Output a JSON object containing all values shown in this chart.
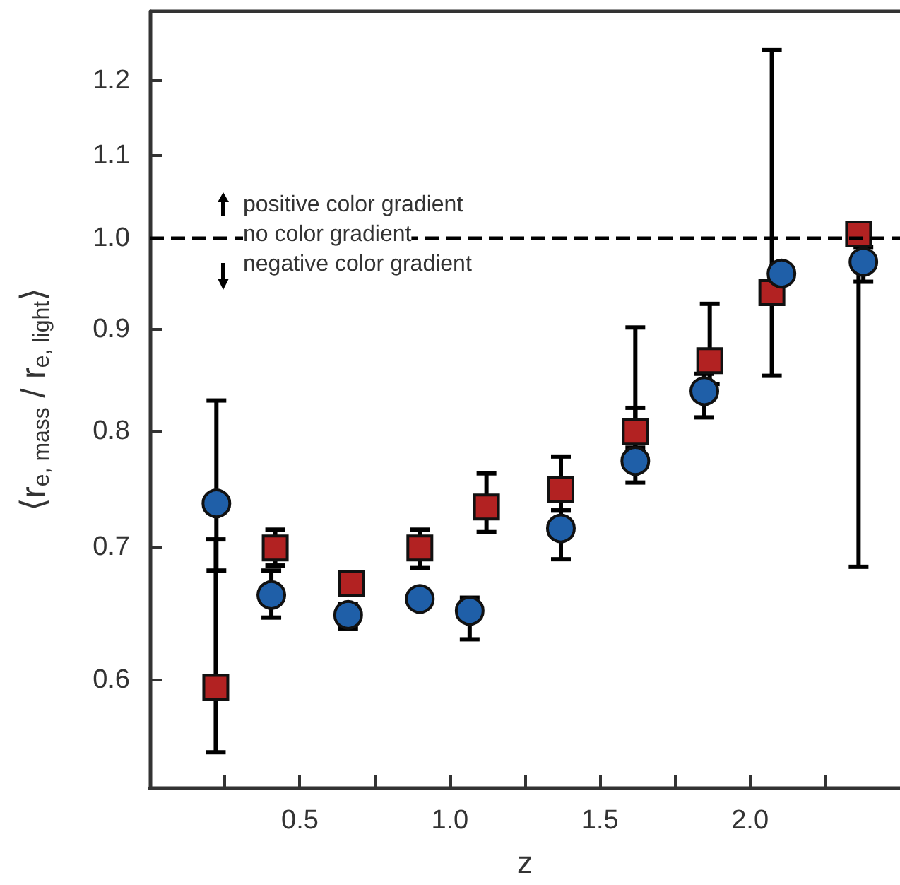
{
  "chart_data": {
    "type": "scatter",
    "xlabel": "z",
    "ylabel": "⟨r$_{e, mass}$ / r$_{e, light}$⟩",
    "log": "y",
    "xlim": [
      0,
      2.5
    ],
    "ylim": [
      0.53,
      1.3
    ],
    "xticks": [
      {
        "value": 0.25,
        "label": null
      },
      0.5,
      {
        "value": 0.75,
        "label": null
      },
      {
        "value": 1,
        "label": "1.0"
      },
      {
        "value": 1.25,
        "label": null
      },
      1.5,
      {
        "value": 1.75,
        "label": null
      },
      {
        "value": 2,
        "label": "2.0"
      },
      {
        "value": 2.25,
        "label": null
      }
    ],
    "yticks": [
      0.6,
      0.7,
      0.8,
      0.9,
      {
        "value": 1,
        "label": "1.0"
      },
      1.1,
      1.2
    ],
    "grid": false,
    "ref_lines": [
      {
        "axis": "y",
        "value": 1,
        "line_style": "dashed",
        "color": "#000000"
      }
    ],
    "annotations": [
      "positive color gradient",
      "no color gradient",
      "negative color gradient"
    ],
    "series": [
      {
        "color": "#b22222",
        "marker": "square",
        "x": [
          0.22,
          0.418,
          0.671,
          0.9,
          1.122,
          1.37,
          1.618,
          1.866,
          2.073,
          2.362
        ],
        "values": [
          0.595,
          0.699,
          0.671,
          0.699,
          0.733,
          0.748,
          0.8,
          0.868,
          0.939,
          1.005
        ],
        "errors": [
          [
            0.552,
            0.706
          ],
          [
            0.685,
            0.714
          ],
          [
            0.665,
            0.68
          ],
          [
            0.683,
            0.714
          ],
          [
            0.712,
            0.762
          ],
          [
            0.73,
            0.777
          ],
          [
            0.785,
            0.902
          ],
          [
            0.845,
            0.927
          ],
          [
            0.853,
            1.243
          ],
          [
            0.684,
            1.005
          ]
        ]
      },
      {
        "color": "#1f5fa8",
        "marker": "circle",
        "x": [
          0.222,
          0.405,
          0.661,
          0.9,
          1.066,
          1.37,
          1.618,
          1.848,
          2.105,
          2.378
        ],
        "values": [
          0.736,
          0.662,
          0.647,
          0.659,
          0.65,
          0.715,
          0.773,
          0.838,
          0.96,
          0.973
        ],
        "errors": [
          [
            0.681,
            0.829
          ],
          [
            0.645,
            0.681
          ],
          [
            0.637,
            0.655
          ],
          null,
          [
            0.629,
            0.66
          ],
          [
            0.69,
            0.73
          ],
          [
            0.754,
            0.822
          ],
          [
            0.813,
            0.855
          ],
          null,
          [
            0.951,
            0.99
          ]
        ]
      }
    ]
  }
}
